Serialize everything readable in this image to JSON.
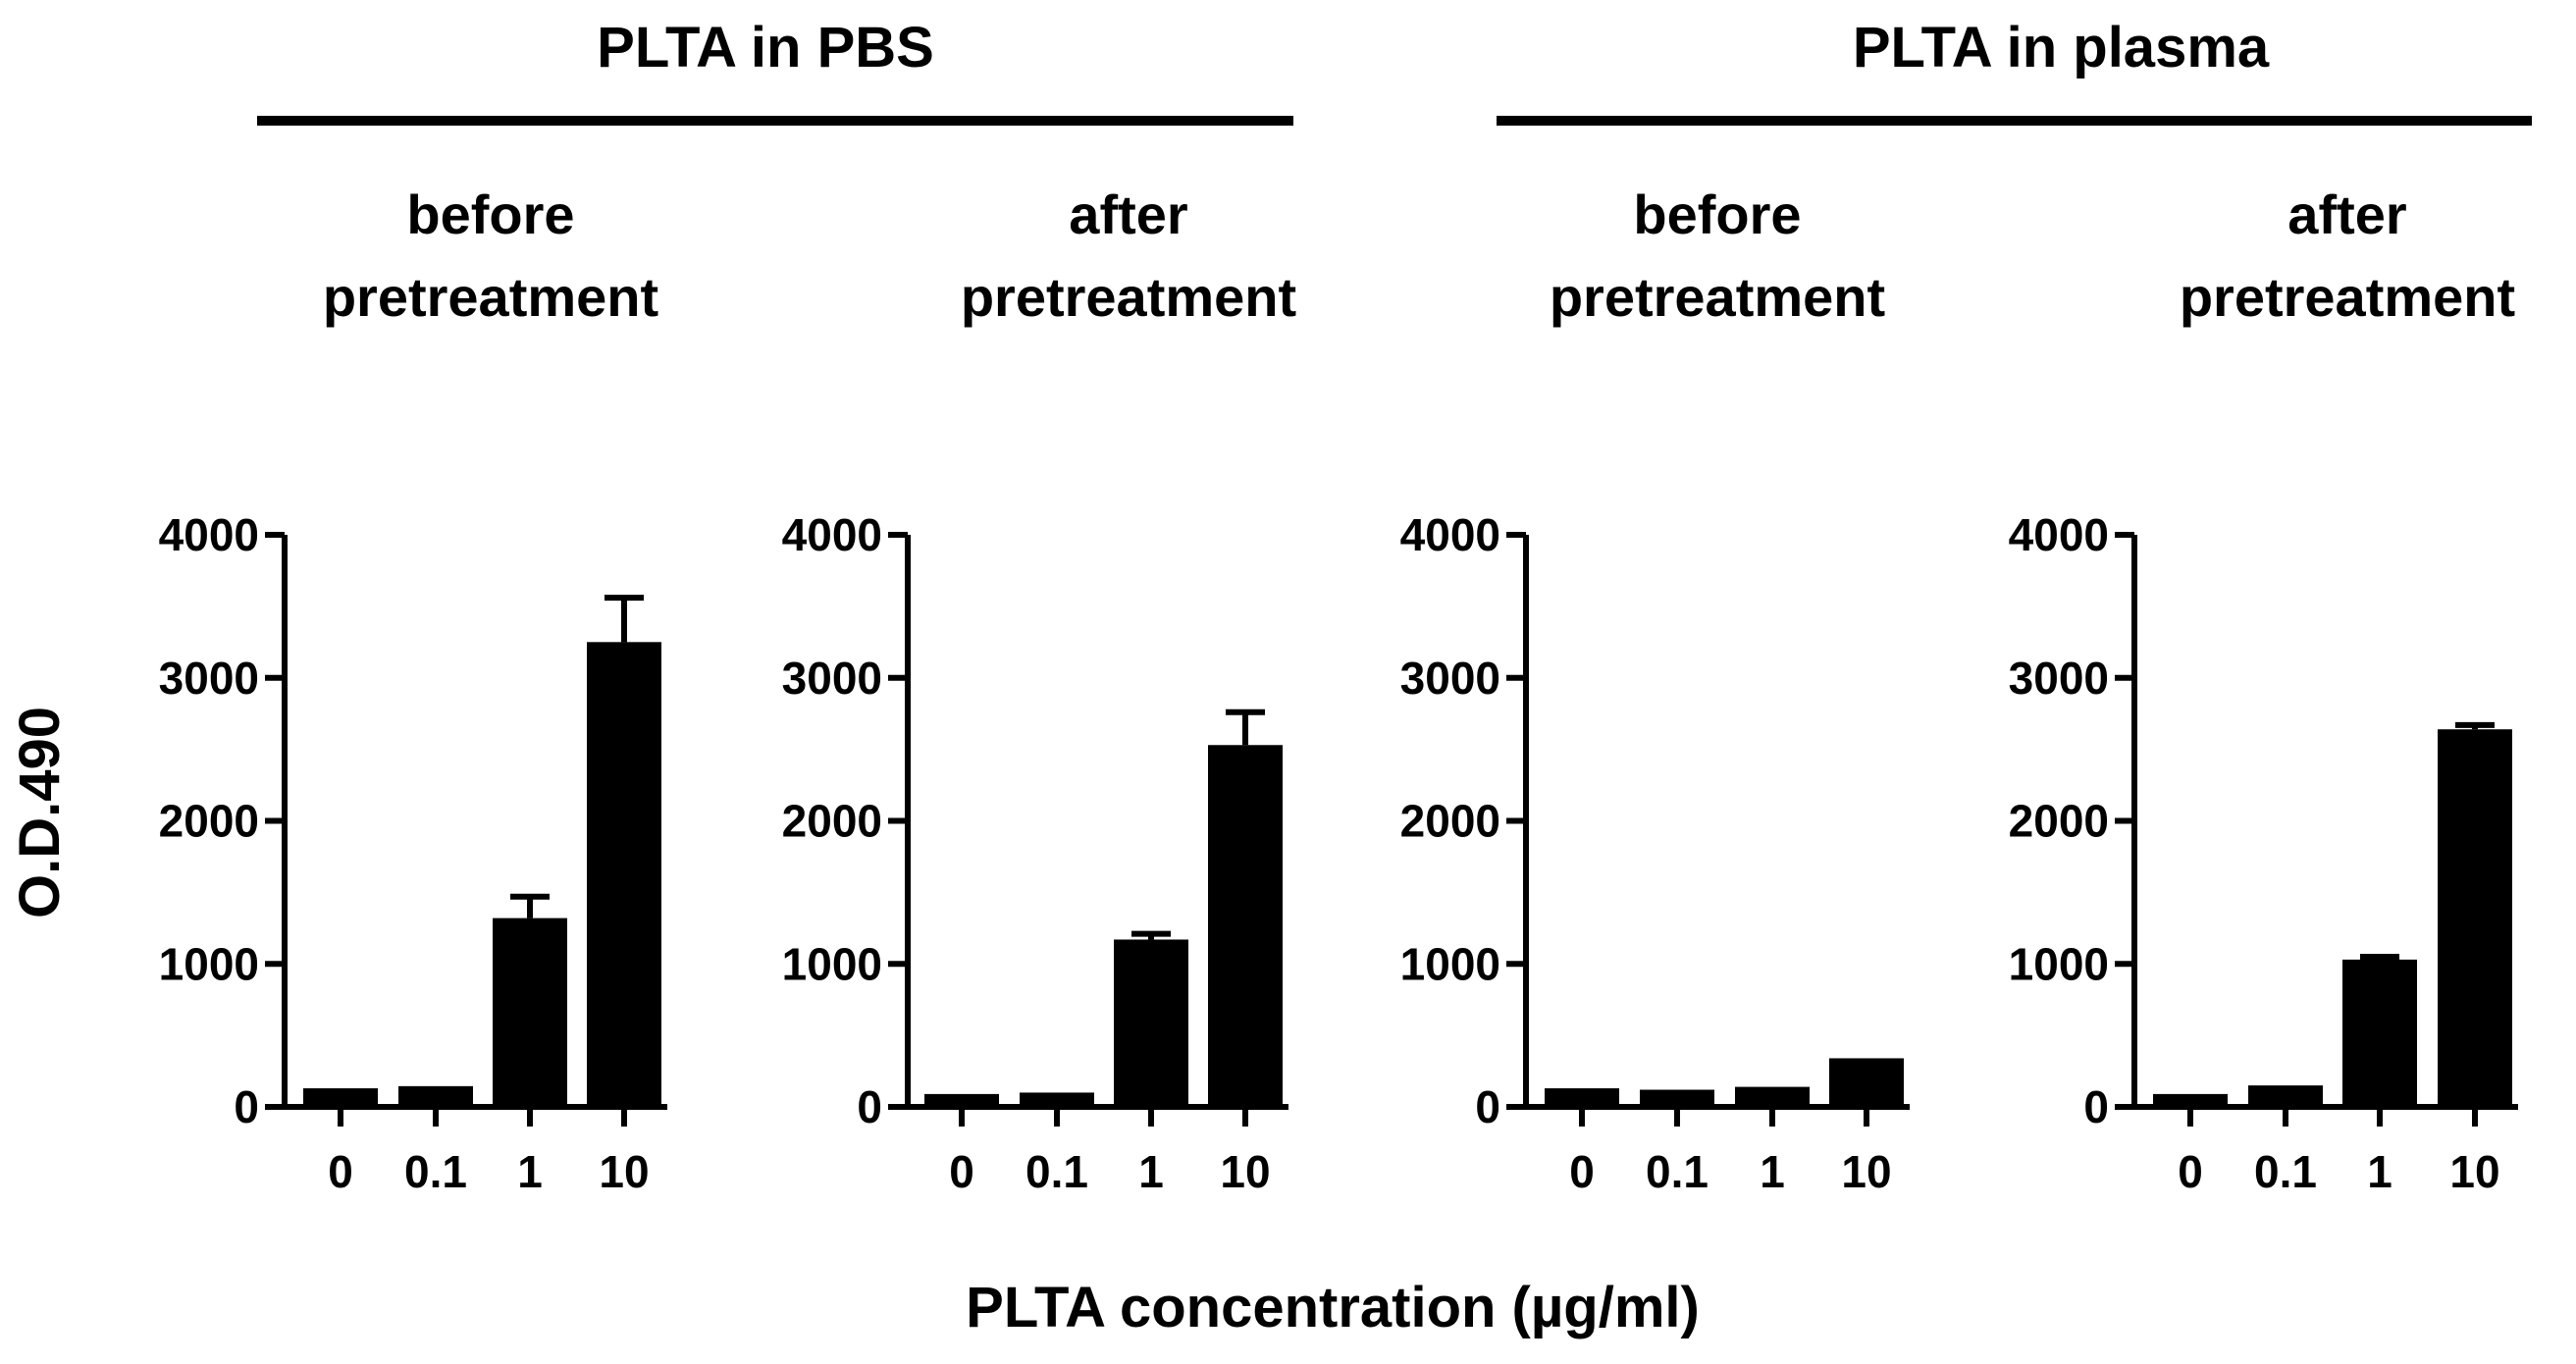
{
  "groups": [
    {
      "title": "PLTA in PBS",
      "panels": [
        0,
        1
      ]
    },
    {
      "title": "PLTA in plasma",
      "panels": [
        2,
        3
      ]
    }
  ],
  "colors": {
    "bar": "#000000",
    "axis": "#000000",
    "background": "#ffffff"
  },
  "chart_data": [
    {
      "type": "bar",
      "title_lines": [
        "before",
        "pretreatment"
      ],
      "group": "PLTA in PBS",
      "categories": [
        "0",
        "0.1",
        "1",
        "10"
      ],
      "values": [
        130,
        145,
        1320,
        3250
      ],
      "error_plus": [
        0,
        0,
        150,
        310
      ],
      "ylim": [
        0,
        4000
      ],
      "yticks": [
        0,
        1000,
        2000,
        3000,
        4000
      ],
      "ylabel": "O.D.490",
      "xlabel": "PLTA concentration (µg/ml)"
    },
    {
      "type": "bar",
      "title_lines": [
        "after",
        "pretreatment"
      ],
      "group": "PLTA in PBS",
      "categories": [
        "0",
        "0.1",
        "1",
        "10"
      ],
      "values": [
        90,
        100,
        1170,
        2530
      ],
      "error_plus": [
        0,
        0,
        40,
        230
      ],
      "ylim": [
        0,
        4000
      ],
      "yticks": [
        0,
        1000,
        2000,
        3000,
        4000
      ],
      "ylabel": "O.D.490",
      "xlabel": "PLTA concentration (µg/ml)"
    },
    {
      "type": "bar",
      "title_lines": [
        "before",
        "pretreatment"
      ],
      "group": "PLTA in plasma",
      "categories": [
        "0",
        "0.1",
        "1",
        "10"
      ],
      "values": [
        130,
        120,
        140,
        340
      ],
      "error_plus": [
        0,
        0,
        0,
        0
      ],
      "ylim": [
        0,
        4000
      ],
      "yticks": [
        0,
        1000,
        2000,
        3000,
        4000
      ],
      "ylabel": "O.D.490",
      "xlabel": "PLTA concentration (µg/ml)"
    },
    {
      "type": "bar",
      "title_lines": [
        "after",
        "pretreatment"
      ],
      "group": "PLTA in plasma",
      "categories": [
        "0",
        "0.1",
        "1",
        "10"
      ],
      "values": [
        90,
        150,
        1030,
        2640
      ],
      "error_plus": [
        0,
        0,
        20,
        30
      ],
      "ylim": [
        0,
        4000
      ],
      "yticks": [
        0,
        1000,
        2000,
        3000,
        4000
      ],
      "ylabel": "O.D.490",
      "xlabel": "PLTA concentration (µg/ml)"
    }
  ],
  "axis_titles": {
    "y": "O.D.490",
    "x": "PLTA concentration (µg/ml)"
  }
}
